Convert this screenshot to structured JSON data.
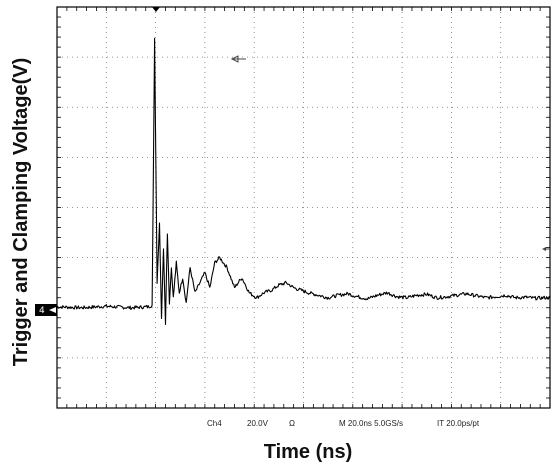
{
  "chart_data": {
    "type": "line",
    "title": "",
    "xlabel": "Time (ns)",
    "ylabel": "Trigger and Clamping Voltage(V)",
    "grid": true,
    "divisions": {
      "x": 10,
      "y": 8
    },
    "scope_readout": {
      "channel": "Ch4",
      "volts_per_div": "20.0V",
      "coupling": "Ω",
      "timebase": "M 20.0ns 5.0GS/s",
      "record": "IT 20.0ps/pt"
    },
    "ground_marker": "4",
    "series": [
      {
        "units": "divisions",
        "x": [
          0,
          0.5,
          1.0,
          1.5,
          1.85,
          1.93,
          1.98,
          2.03,
          2.08,
          2.12,
          2.16,
          2.2,
          2.24,
          2.28,
          2.32,
          2.36,
          2.42,
          2.48,
          2.55,
          2.62,
          2.7,
          2.8,
          2.9,
          3.0,
          3.1,
          3.2,
          3.3,
          3.45,
          3.6,
          3.75,
          3.9,
          4.05,
          4.2,
          4.35,
          4.5,
          4.65,
          4.8,
          4.95,
          5.1,
          5.3,
          5.5,
          5.7,
          5.9,
          6.1,
          6.3,
          6.5,
          6.7,
          6.9,
          7.1,
          7.3,
          7.5,
          7.7,
          7.9,
          8.1,
          8.3,
          8.5,
          8.7,
          8.9,
          9.1,
          9.3,
          9.5,
          9.7,
          9.9,
          10.0
        ],
        "y": [
          0.02,
          0.0,
          0.03,
          0.0,
          0.02,
          0.05,
          5.4,
          0.5,
          1.7,
          -0.2,
          1.2,
          -0.3,
          1.5,
          0.1,
          0.8,
          0.2,
          0.9,
          0.3,
          0.6,
          0.1,
          0.8,
          0.3,
          0.5,
          0.7,
          0.4,
          0.9,
          1.0,
          0.8,
          0.4,
          0.6,
          0.3,
          0.2,
          0.3,
          0.35,
          0.45,
          0.5,
          0.4,
          0.35,
          0.3,
          0.25,
          0.2,
          0.25,
          0.28,
          0.22,
          0.18,
          0.25,
          0.3,
          0.22,
          0.2,
          0.25,
          0.27,
          0.2,
          0.22,
          0.25,
          0.28,
          0.24,
          0.2,
          0.22,
          0.25,
          0.2,
          0.21,
          0.19,
          0.2,
          0.2
        ]
      }
    ]
  }
}
